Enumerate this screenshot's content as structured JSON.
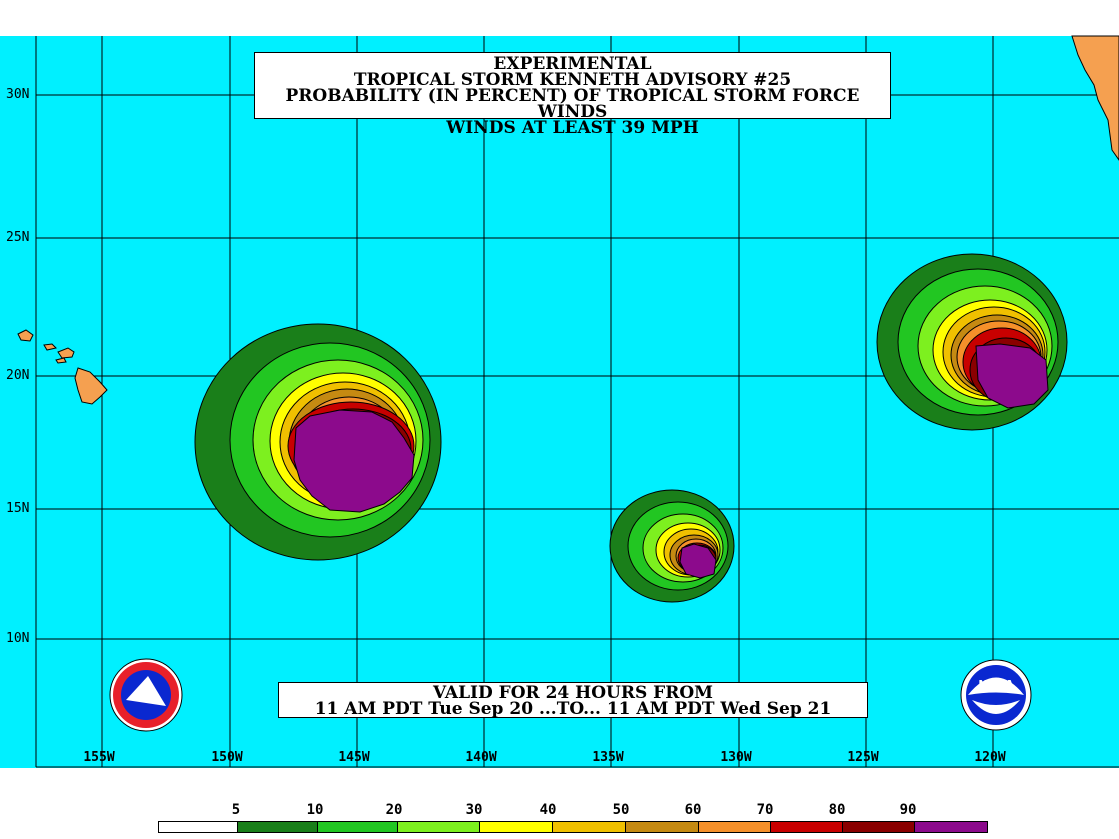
{
  "title": {
    "line1": "EXPERIMENTAL",
    "line2": "TROPICAL STORM KENNETH ADVISORY #25",
    "line3": "PROBABILITY (IN PERCENT) OF TROPICAL STORM FORCE WINDS",
    "line4": "WINDS AT LEAST 39 MPH"
  },
  "valid": {
    "line1": "VALID FOR 24 HOURS FROM",
    "line2": "11 AM PDT Tue Sep 20 ...TO... 11 AM PDT Wed Sep 21"
  },
  "latitude_labels": [
    "30N",
    "25N",
    "20N",
    "15N",
    "10N"
  ],
  "longitude_labels": [
    "155W",
    "150W",
    "145W",
    "140W",
    "135W",
    "130W",
    "125W",
    "120W"
  ],
  "legend": {
    "labels": [
      "5",
      "10",
      "20",
      "30",
      "40",
      "50",
      "60",
      "70",
      "80",
      "90"
    ],
    "colors": [
      "#ffffff",
      "#1a7f1a",
      "#22c622",
      "#7df01f",
      "#ffff00",
      "#f0c000",
      "#c58a12",
      "#f5902a",
      "#c80000",
      "#8a0000",
      "#8c0a8c"
    ]
  },
  "colors": {
    "ocean": "#00f0ff",
    "land": "#f5a050",
    "grid": "#000000"
  },
  "logos": {
    "left": "nws-logo",
    "right": "noaa-logo"
  }
}
